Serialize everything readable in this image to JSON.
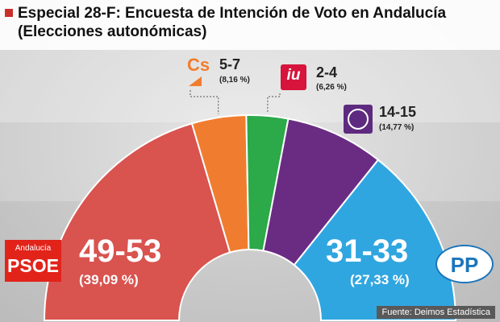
{
  "title": "Especial 28-F: Encuesta de Intención de Voto en Andalucía (Elecciones autonómicas)",
  "source": "Fuente: Deimos Estadística",
  "logos": {
    "psoe_small": "Andalucía",
    "psoe_big": "PSOE",
    "pp": "PP",
    "cs": "Cs",
    "iu": "iu"
  },
  "colors": {
    "psoe": "#d9534f",
    "cs": "#f07d2f",
    "iu": "#2ca949",
    "podemos": "#6a2c83",
    "pp": "#30a6e0"
  },
  "chart_data": {
    "type": "pie",
    "subtype": "hemicycle",
    "order": [
      "PSOE",
      "Cs",
      "IU",
      "Podemos",
      "PP"
    ],
    "series": [
      {
        "name": "PSOE",
        "seats": "49-53",
        "percent_label": "(39,09 %)",
        "value": 39.09
      },
      {
        "name": "Cs",
        "seats": "5-7",
        "percent_label": "(8,16 %)",
        "value": 8.16
      },
      {
        "name": "IU",
        "seats": "2-4",
        "percent_label": "(6,26 %)",
        "value": 6.26
      },
      {
        "name": "Podemos",
        "seats": "14-15",
        "percent_label": "(14,77 %)",
        "value": 14.77
      },
      {
        "name": "PP",
        "seats": "31-33",
        "percent_label": "(27,33 %)",
        "value": 27.33
      }
    ]
  }
}
